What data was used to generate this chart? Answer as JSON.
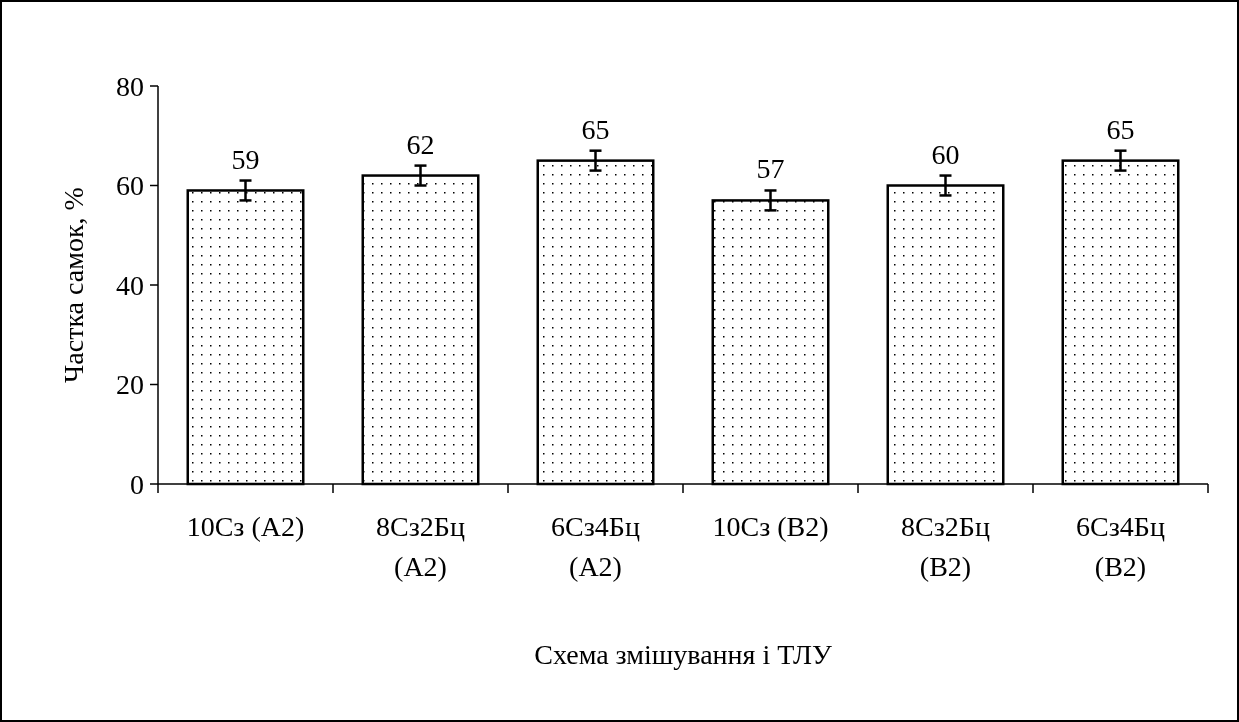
{
  "chart_data": {
    "type": "bar",
    "categories": [
      "10Сз (А2)",
      "8Сз2Бц (А2)",
      "6Сз4Бц (А2)",
      "10Сз (В2)",
      "8Сз2Бц (В2)",
      "6Сз4Бц (В2)"
    ],
    "values": [
      59,
      62,
      65,
      57,
      60,
      65
    ],
    "errors": [
      2,
      2,
      2,
      2,
      2,
      2
    ],
    "color": "#ffffff",
    "data_labels": true,
    "ylim": [
      0,
      80
    ],
    "yticks": [
      0,
      20,
      40,
      60,
      80
    ],
    "xlabel": "Схема змішування і ТЛУ",
    "ylabel": "Частка самок, %",
    "grid": false
  }
}
